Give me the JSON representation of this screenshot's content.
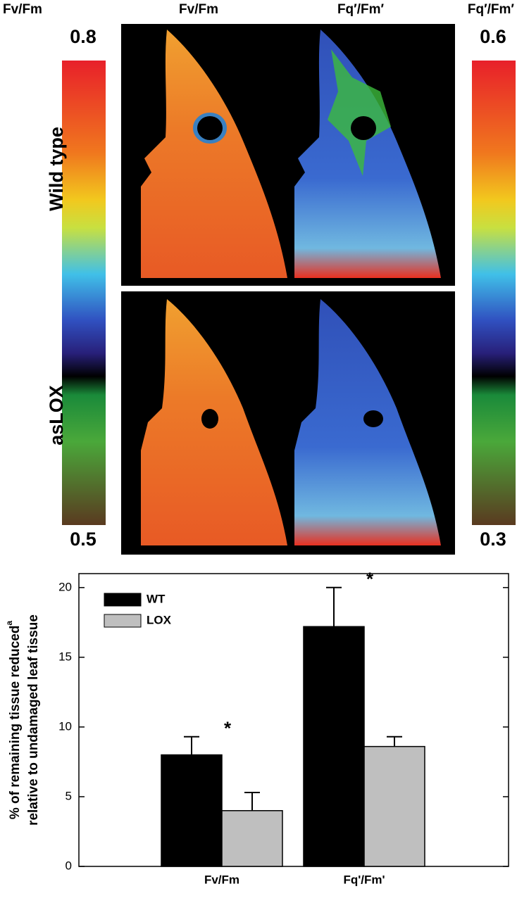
{
  "panels": {
    "colorbars": [
      {
        "title": "Fv/Fm",
        "max": 0.8,
        "min": 0.5
      },
      {
        "title": "Fq′/Fm′",
        "max": 0.6,
        "min": 0.3
      }
    ],
    "column_titles": [
      "Fv/Fm",
      "Fq′/Fm′"
    ],
    "row_titles": [
      "Wild type",
      "asLOX"
    ]
  },
  "chart_data": {
    "type": "bar",
    "ylabel": [
      "% of remaining tissue reduced",
      "relative to undamaged leaf tissue"
    ],
    "ylabel_superscript": "a",
    "categories": [
      "Fv/Fm",
      "Fq'/Fm'"
    ],
    "series": [
      {
        "name": "WT",
        "color": "#000000",
        "values": [
          8.0,
          17.2
        ],
        "errors": [
          1.3,
          2.8
        ]
      },
      {
        "name": "LOX",
        "color": "#bfbfbf",
        "values": [
          4.0,
          8.6
        ],
        "errors": [
          1.3,
          0.7
        ]
      }
    ],
    "annotations": [
      "*",
      "*"
    ],
    "ylim": [
      0,
      21
    ],
    "yticks": [
      0,
      5,
      10,
      15,
      20
    ],
    "legend": "upper left"
  }
}
